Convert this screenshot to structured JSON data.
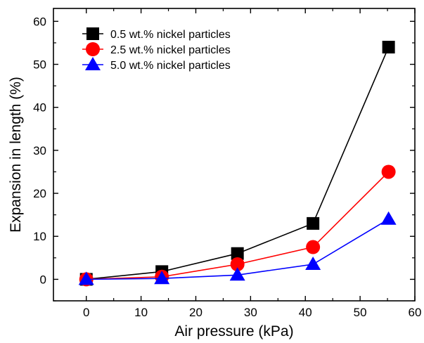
{
  "chart_data": {
    "type": "line",
    "title": "",
    "xlabel": "Air pressure (kPa)",
    "ylabel": "Expansion in length (%)",
    "xlim": [
      -6,
      60
    ],
    "ylim": [
      -5,
      63
    ],
    "xticks": [
      0,
      10,
      20,
      30,
      40,
      50,
      60
    ],
    "yticks": [
      0,
      10,
      20,
      30,
      40,
      50,
      60
    ],
    "grid": false,
    "legend_position": "top-left",
    "x": [
      0,
      13.8,
      27.6,
      41.4,
      55.2
    ],
    "series": [
      {
        "name": "0.5 wt.% nickel particles",
        "marker": "square",
        "color": "#000000",
        "values": [
          0,
          1.8,
          6,
          13,
          54
        ]
      },
      {
        "name": "2.5 wt.% nickel particles",
        "marker": "circle",
        "color": "#ff0000",
        "values": [
          0,
          0.6,
          3.5,
          7.5,
          25
        ]
      },
      {
        "name": "5.0 wt.% nickel particles",
        "marker": "triangle",
        "color": "#0000ff",
        "values": [
          0,
          0.2,
          1,
          3.5,
          14
        ]
      }
    ]
  }
}
